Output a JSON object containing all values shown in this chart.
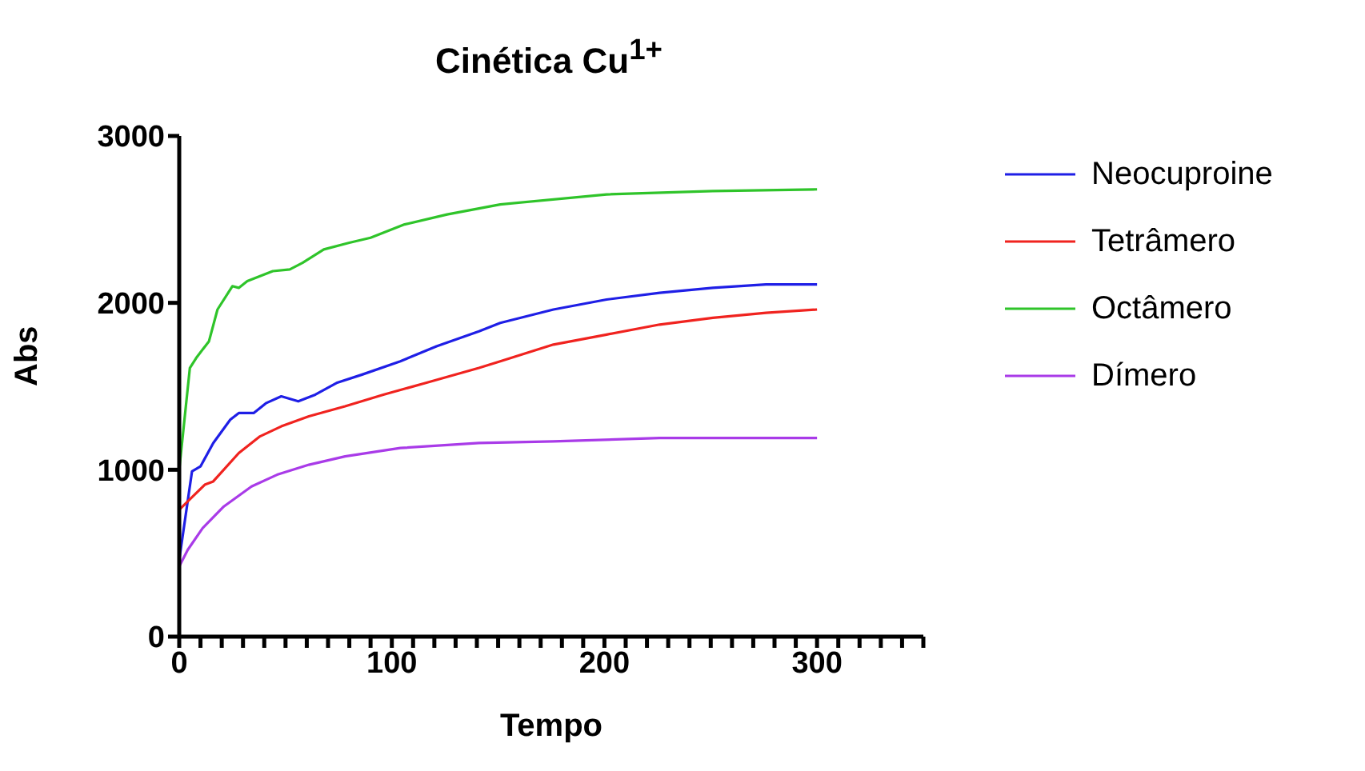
{
  "chart_data": {
    "type": "line",
    "title": "Cinética Cu$^{1+}$",
    "xlabel": "Tempo",
    "ylabel": "Abs",
    "xlim": [
      0,
      350
    ],
    "xticks": [
      0,
      {
        "value": 10,
        "label": null
      },
      {
        "value": 20,
        "label": null
      },
      {
        "value": 30,
        "label": null
      },
      {
        "value": 40,
        "label": null
      },
      {
        "value": 50,
        "label": null
      },
      {
        "value": 60,
        "label": null
      },
      {
        "value": 70,
        "label": null
      },
      {
        "value": 80,
        "label": null
      },
      {
        "value": 90,
        "label": null
      },
      100,
      {
        "value": 110,
        "label": null
      },
      {
        "value": 120,
        "label": null
      },
      {
        "value": 130,
        "label": null
      },
      {
        "value": 140,
        "label": null
      },
      {
        "value": 150,
        "label": null
      },
      {
        "value": 160,
        "label": null
      },
      {
        "value": 170,
        "label": null
      },
      {
        "value": 180,
        "label": null
      },
      {
        "value": 190,
        "label": null
      },
      200,
      {
        "value": 210,
        "label": null
      },
      {
        "value": 220,
        "label": null
      },
      {
        "value": 230,
        "label": null
      },
      {
        "value": 240,
        "label": null
      },
      {
        "value": 250,
        "label": null
      },
      {
        "value": 260,
        "label": null
      },
      {
        "value": 270,
        "label": null
      },
      {
        "value": 280,
        "label": null
      },
      {
        "value": 290,
        "label": null
      },
      300,
      {
        "value": 310,
        "label": null
      },
      {
        "value": 320,
        "label": null
      },
      {
        "value": 330,
        "label": null
      },
      {
        "value": 340,
        "label": null
      },
      {
        "value": 350,
        "label": null
      }
    ],
    "ylim": [
      0,
      3000
    ],
    "yticks": [
      0,
      1000,
      2000,
      3000
    ],
    "legend": "top right",
    "marker": "none",
    "line_style": "solid",
    "series": [
      {
        "name": "Neocuproine",
        "color": "#1f1fe6",
        "x": [
          0,
          6,
          10,
          16,
          24,
          28,
          35,
          41,
          48,
          56,
          64,
          74,
          86,
          104,
          121,
          141,
          151,
          176,
          201,
          226,
          251,
          276,
          300
        ],
        "values": [
          460,
          990,
          1020,
          1160,
          1300,
          1340,
          1340,
          1400,
          1440,
          1410,
          1450,
          1520,
          1570,
          1650,
          1740,
          1830,
          1880,
          1960,
          2020,
          2060,
          2090,
          2110,
          2110
        ]
      },
      {
        "name": "Tetrâmero",
        "color": "#f0231f",
        "x": [
          0,
          4,
          12,
          16,
          28,
          38,
          48,
          61,
          78,
          96,
          116,
          141,
          151,
          176,
          201,
          226,
          251,
          276,
          300
        ],
        "values": [
          760,
          810,
          910,
          930,
          1100,
          1200,
          1260,
          1320,
          1380,
          1450,
          1520,
          1610,
          1650,
          1750,
          1810,
          1870,
          1910,
          1940,
          1960
        ]
      },
      {
        "name": "Octâmero",
        "color": "#2fc42a",
        "x": [
          0,
          5,
          8,
          14,
          18,
          25,
          28,
          32,
          44,
          52,
          58,
          68,
          80,
          90,
          106,
          126,
          151,
          201,
          251,
          300
        ],
        "values": [
          1000,
          1610,
          1670,
          1770,
          1960,
          2100,
          2090,
          2130,
          2190,
          2200,
          2240,
          2320,
          2360,
          2390,
          2470,
          2530,
          2590,
          2650,
          2670,
          2680
        ]
      },
      {
        "name": "Dímero",
        "color": "#a93be8",
        "x": [
          0,
          4,
          11,
          21,
          34,
          46,
          61,
          78,
          104,
          141,
          176,
          226,
          300
        ],
        "values": [
          420,
          520,
          650,
          780,
          900,
          970,
          1030,
          1080,
          1130,
          1160,
          1170,
          1190,
          1190
        ]
      }
    ]
  }
}
